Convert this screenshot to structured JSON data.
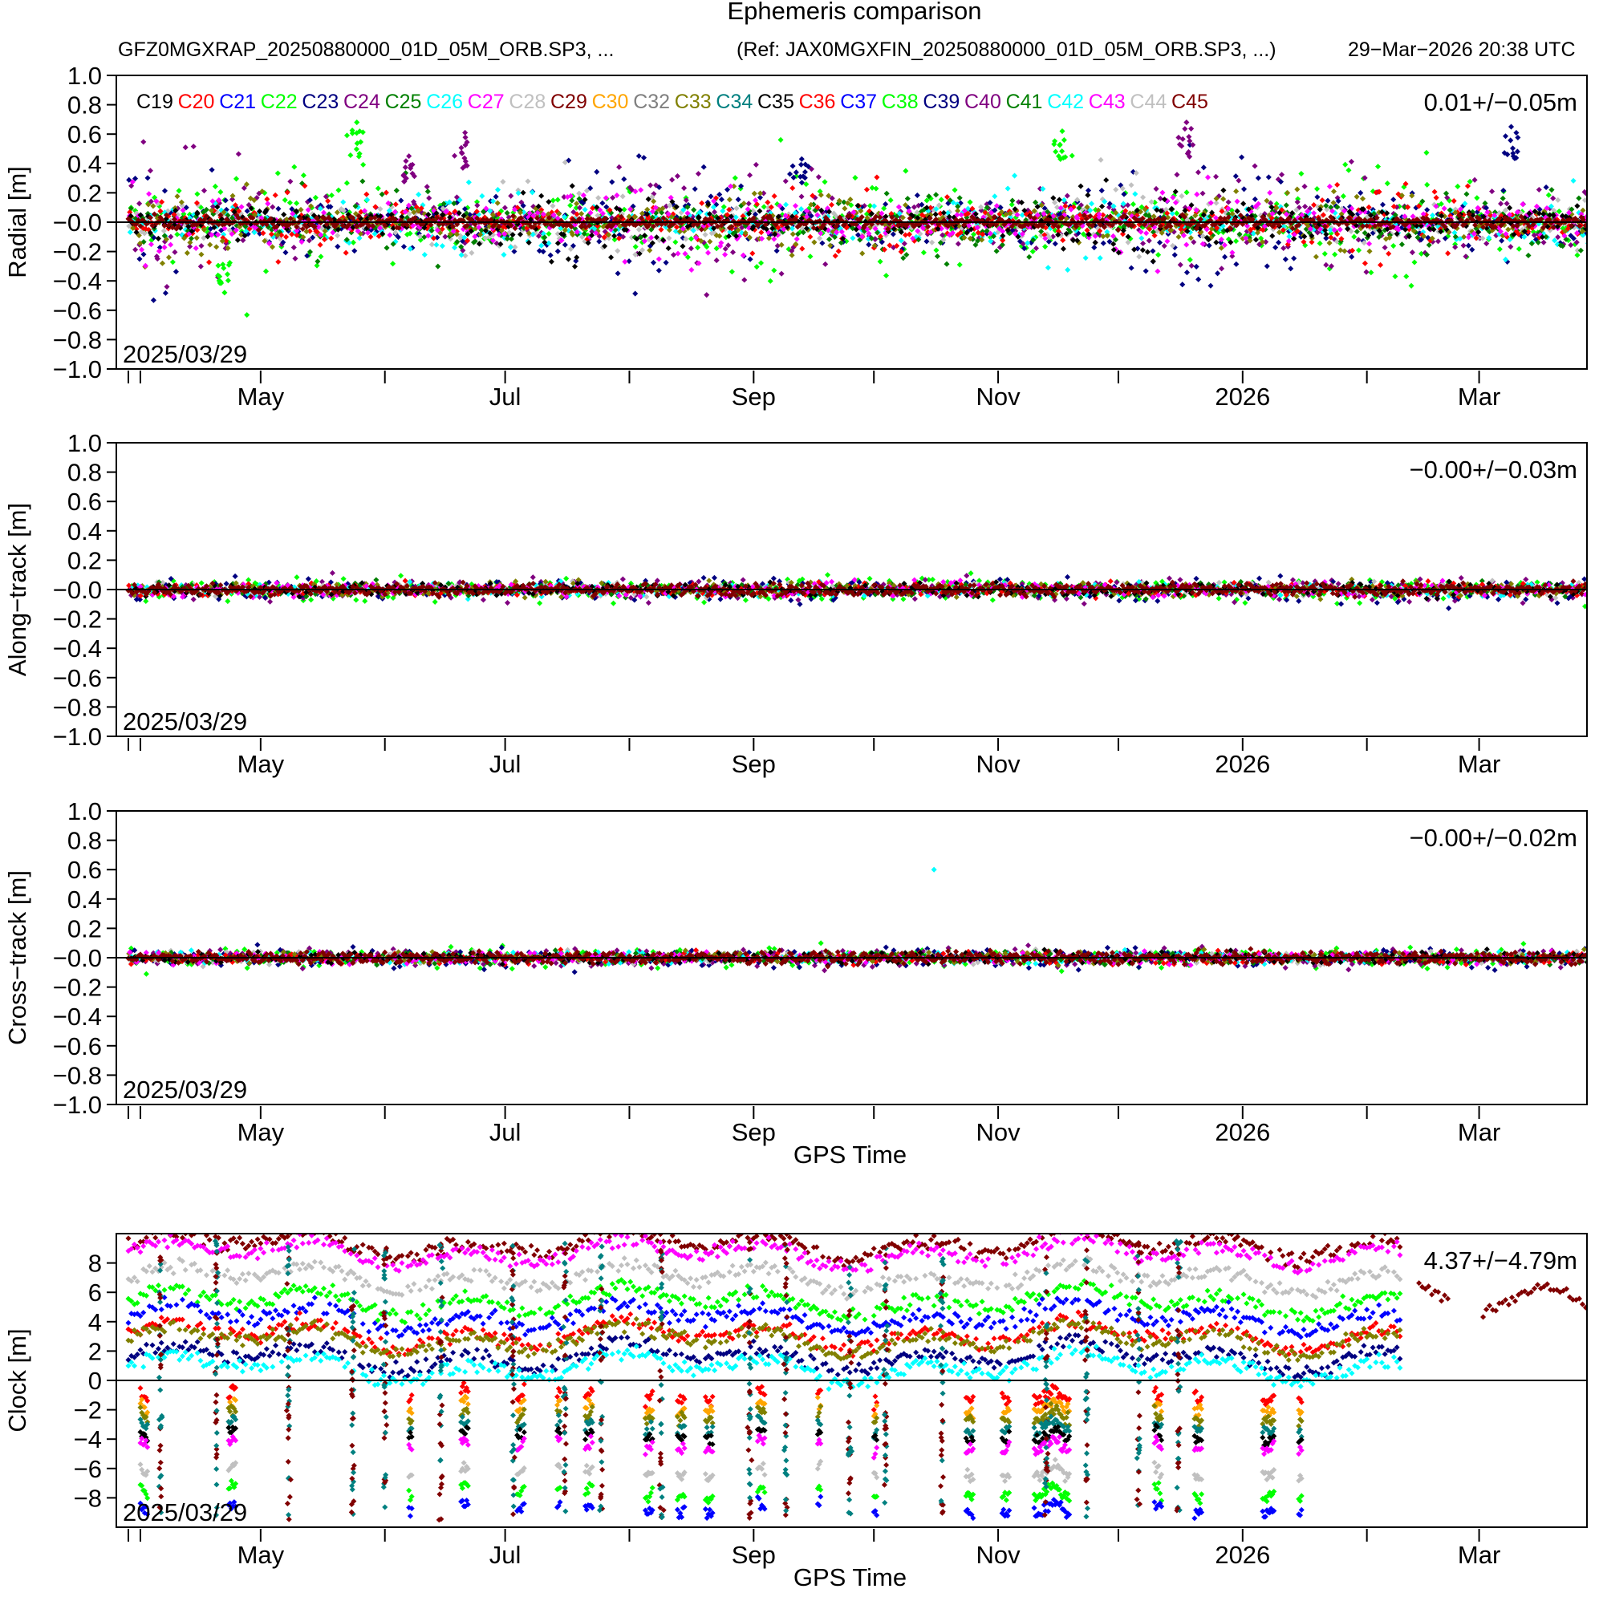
{
  "header": {
    "title": "Ephemeris comparison",
    "source_files": "GFZ0MGXRAP_20250880000_01D_05M_ORB.SP3, ...",
    "reference_files": "(Ref: JAX0MGXFIN_20250880000_01D_05M_ORB.SP3, ...)",
    "generated": "29−Mar−2026 20:38 UTC"
  },
  "chart_data": [
    {
      "type": "scatter",
      "panel": "radial",
      "ylabel": "Radial [m]",
      "xlabel": "",
      "ylim": [
        -1.0,
        1.0
      ],
      "yticks": [
        "1.0",
        "0.8",
        "0.6",
        "0.4",
        "0.2",
        "−0.0",
        "−0.2",
        "−0.4",
        "−0.6",
        "−0.8",
        "−1.0"
      ],
      "xlim": [
        "2025-03-29",
        "2026-03-29"
      ],
      "xticks": [
        "May",
        "Jul",
        "Sep",
        "Nov",
        "2026",
        "Mar"
      ],
      "start_label": "2025/03/29",
      "stats": "0.01+/−0.05m",
      "mean": 0.01,
      "std": 0.05,
      "legend": {
        "placement": "top-left",
        "entries": [
          {
            "name": "C19",
            "color": "#000000"
          },
          {
            "name": "C20",
            "color": "#ff0000"
          },
          {
            "name": "C21",
            "color": "#0000ff"
          },
          {
            "name": "C22",
            "color": "#00ff00"
          },
          {
            "name": "C23",
            "color": "#000080"
          },
          {
            "name": "C24",
            "color": "#800080"
          },
          {
            "name": "C25",
            "color": "#008000"
          },
          {
            "name": "C26",
            "color": "#00ffff"
          },
          {
            "name": "C27",
            "color": "#ff00ff"
          },
          {
            "name": "C28",
            "color": "#c0c0c0"
          },
          {
            "name": "C29",
            "color": "#800000"
          },
          {
            "name": "C30",
            "color": "#ffa500"
          },
          {
            "name": "C32",
            "color": "#808080"
          },
          {
            "name": "C33",
            "color": "#808000"
          },
          {
            "name": "C34",
            "color": "#008080"
          },
          {
            "name": "C35",
            "color": "#000000"
          },
          {
            "name": "C36",
            "color": "#ff0000"
          },
          {
            "name": "C37",
            "color": "#0000ff"
          },
          {
            "name": "C38",
            "color": "#00ff00"
          },
          {
            "name": "C39",
            "color": "#000080"
          },
          {
            "name": "C40",
            "color": "#800080"
          },
          {
            "name": "C41",
            "color": "#008000"
          },
          {
            "name": "C42",
            "color": "#00ffff"
          },
          {
            "name": "C43",
            "color": "#ff00ff"
          },
          {
            "name": "C44",
            "color": "#c0c0c0"
          },
          {
            "name": "C45",
            "color": "#800000"
          }
        ]
      },
      "series_scatter_pattern": [
        {
          "name": "C22",
          "color": "#00ff00",
          "spread": 0.18,
          "bias": 0.03,
          "spikes": [
            [
              "2025-05-25",
              0.68
            ],
            [
              "2025-11-17",
              0.62
            ],
            [
              "2025-04-22",
              -0.48
            ]
          ]
        },
        {
          "name": "C24",
          "color": "#800080",
          "spread": 0.16,
          "bias": 0.02,
          "spikes": [
            [
              "2025-06-21",
              0.61
            ],
            [
              "2025-12-18",
              0.68
            ],
            [
              "2025-06-07",
              0.45
            ]
          ]
        },
        {
          "name": "C39",
          "color": "#000080",
          "spread": 0.14,
          "bias": 0.0,
          "spikes": [
            [
              "2025-09-13",
              0.43
            ],
            [
              "2026-03-09",
              0.65
            ]
          ]
        },
        {
          "name": "C45",
          "color": "#800000",
          "spread": 0.05,
          "bias": 0.0,
          "spikes": []
        }
      ],
      "grid": false
    },
    {
      "type": "scatter",
      "panel": "along-track",
      "ylabel": "Along−track [m]",
      "xlabel": "",
      "ylim": [
        -1.0,
        1.0
      ],
      "yticks": [
        "1.0",
        "0.8",
        "0.6",
        "0.4",
        "0.2",
        "−0.0",
        "−0.2",
        "−0.4",
        "−0.6",
        "−0.8",
        "−1.0"
      ],
      "xlim": [
        "2025-03-29",
        "2026-03-29"
      ],
      "xticks": [
        "May",
        "Jul",
        "Sep",
        "Nov",
        "2026",
        "Mar"
      ],
      "start_label": "2025/03/29",
      "stats": "−0.00+/−0.03m",
      "mean": -0.0,
      "std": 0.03,
      "grid": false
    },
    {
      "type": "scatter",
      "panel": "cross-track",
      "ylabel": "Cross−track [m]",
      "xlabel": "GPS Time",
      "ylim": [
        -1.0,
        1.0
      ],
      "yticks": [
        "1.0",
        "0.8",
        "0.6",
        "0.4",
        "0.2",
        "−0.0",
        "−0.2",
        "−0.4",
        "−0.6",
        "−0.8",
        "−1.0"
      ],
      "xlim": [
        "2025-03-29",
        "2026-03-29"
      ],
      "xticks": [
        "May",
        "Jul",
        "Sep",
        "Nov",
        "2026",
        "Mar"
      ],
      "start_label": "2025/03/29",
      "stats": "−0.00+/−0.02m",
      "mean": -0.0,
      "std": 0.02,
      "outliers": [
        [
          "2025-10-16",
          0.6
        ]
      ],
      "grid": false
    },
    {
      "type": "scatter",
      "panel": "clock",
      "ylabel": "Clock [m]",
      "xlabel": "GPS Time",
      "ylim": [
        -10,
        10
      ],
      "yticks": [
        "8",
        "6",
        "4",
        "2",
        "0",
        "−2",
        "−4",
        "−6",
        "−8"
      ],
      "xlim": [
        "2025-03-29",
        "2026-03-29"
      ],
      "xticks": [
        "May",
        "Jul",
        "Sep",
        "Nov",
        "2026",
        "Mar"
      ],
      "start_label": "2025/03/29",
      "stats": "4.37+/−4.79m",
      "mean": 4.37,
      "std": 4.79,
      "series_levels": [
        {
          "color": "#800000",
          "level": 9.3
        },
        {
          "color": "#ff00ff",
          "level": 8.7
        },
        {
          "color": "#c0c0c0",
          "level": 7.0
        },
        {
          "color": "#00ff00",
          "level": 5.4
        },
        {
          "color": "#0000ff",
          "level": 4.3
        },
        {
          "color": "#ff0000",
          "level": 3.1
        },
        {
          "color": "#808000",
          "level": 2.8
        },
        {
          "color": "#000080",
          "level": 1.6
        },
        {
          "color": "#00ffff",
          "level": 0.9
        }
      ],
      "negative_bands": [
        {
          "color": "#ff0000",
          "level": -1.0
        },
        {
          "color": "#ffa500",
          "level": -1.8
        },
        {
          "color": "#808000",
          "level": -2.4
        },
        {
          "color": "#008080",
          "level": -3.1
        },
        {
          "color": "#000000",
          "level": -3.7
        },
        {
          "color": "#ff00ff",
          "level": -4.4
        },
        {
          "color": "#c0c0c0",
          "level": -6.2
        },
        {
          "color": "#00ff00",
          "level": -7.6
        },
        {
          "color": "#0000ff",
          "level": -8.7
        }
      ],
      "grid": false
    }
  ]
}
